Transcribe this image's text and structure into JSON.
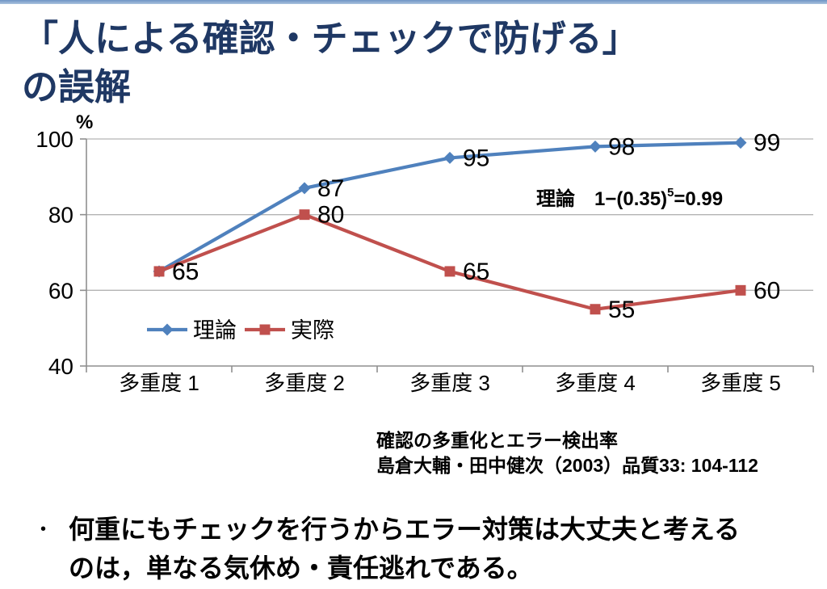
{
  "slide": {
    "title_line1": "「人による確認・チェックで防げる」",
    "title_line2": "の誤解",
    "title_color": "#1f3864",
    "accent_color": "#7a9cc8"
  },
  "chart_data": {
    "type": "line",
    "unit_label": "%",
    "categories": [
      "多重度 1",
      "多重度 2",
      "多重度 3",
      "多重度 4",
      "多重度 5"
    ],
    "series": [
      {
        "name": "理論",
        "values": [
          65,
          87,
          95,
          98,
          99
        ],
        "color": "#4f81bd",
        "marker": "diamond"
      },
      {
        "name": "実際",
        "values": [
          65,
          80,
          65,
          55,
          60
        ],
        "color": "#c0504d",
        "marker": "square"
      }
    ],
    "ylim": [
      40,
      100
    ],
    "yticks": [
      40,
      60,
      80,
      100
    ],
    "grid": true,
    "grid_color": "#b3b3b3",
    "axis_color": "#8f8f8f",
    "label_color": "#000000",
    "legend_position": "inside-bottom-left",
    "annotation": {
      "prefix": "理論　1−(0.35)",
      "superscript": "5",
      "suffix": "=0.99"
    }
  },
  "caption": {
    "line1": "確認の多重化とエラー検出率",
    "line2": "島倉大輔・田中健次（2003）品質33: 104-112"
  },
  "bullet": {
    "marker": "•",
    "text": "何重にもチェックを行うからエラー対策は大丈夫と考えるのは，単なる気休め・責任逃れである。"
  }
}
